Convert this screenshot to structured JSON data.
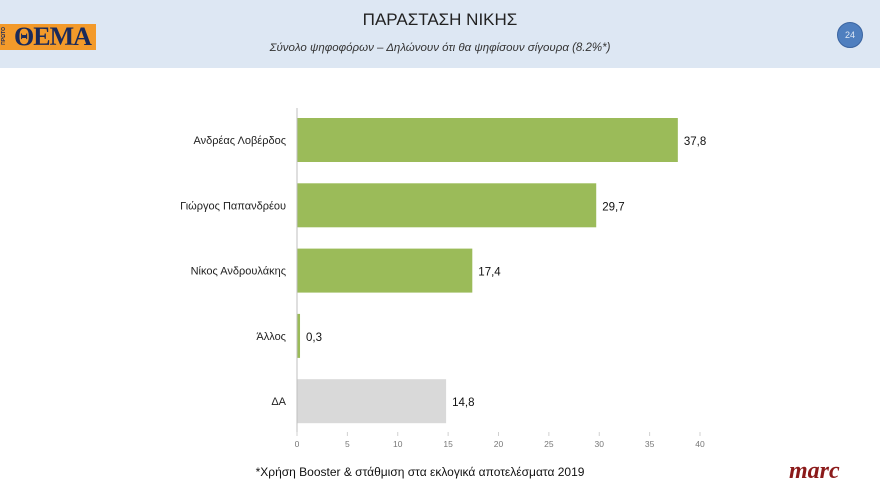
{
  "header": {
    "title": "ΠΑΡΑΣΤΑΣΗ ΝΙΚΗΣ",
    "subtitle": "Σύνολο ψηφοφόρων – Δηλώνουν ότι θα ψηφίσουν σίγουρα (8.2%*)",
    "page_number": "24",
    "logo_text": "ΘΕΜΑ",
    "logo_small_text": "ΠΡΩΤΟ"
  },
  "footer": {
    "footnote": "*Χρήση Booster & στάθμιση στα εκλογικά αποτελέσματα 2019",
    "brand": "marc"
  },
  "chart_data": {
    "type": "bar",
    "orientation": "horizontal",
    "title": "ΠΑΡΑΣΤΑΣΗ ΝΙΚΗΣ",
    "categories": [
      "Ανδρέας Λοβέρδος",
      "Γιώργος Παπανδρέου",
      "Νίκος Ανδρουλάκης",
      "Άλλος",
      "ΔΑ"
    ],
    "values": [
      37.8,
      29.7,
      17.4,
      0.3,
      14.8
    ],
    "labels": [
      "37,8",
      "29,7",
      "17,4",
      "0,3",
      "14,8"
    ],
    "colors": [
      "#9bbb59",
      "#9bbb59",
      "#9bbb59",
      "#9bbb59",
      "#d9d9d9"
    ],
    "xlim": [
      0,
      40
    ],
    "xticks": [
      "0",
      "5",
      "10",
      "15",
      "20",
      "25",
      "30",
      "35",
      "40"
    ],
    "xlabel": "",
    "ylabel": "",
    "grid": false
  }
}
